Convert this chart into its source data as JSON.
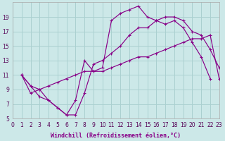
{
  "xlabel": "Windchill (Refroidissement éolien,°C)",
  "bg_color": "#cce8e8",
  "grid_color": "#aad0d0",
  "line_color": "#880088",
  "line1_x": [
    1,
    2,
    3,
    4,
    5,
    6,
    7,
    8,
    9,
    10,
    11,
    12,
    13,
    14,
    15,
    16,
    17,
    18,
    19,
    20,
    21,
    22,
    23
  ],
  "line1_y": [
    11.0,
    9.5,
    9.0,
    7.5,
    6.5,
    5.5,
    5.5,
    8.5,
    12.5,
    13.0,
    14.0,
    15.0,
    16.5,
    17.5,
    17.5,
    18.5,
    19.0,
    19.0,
    18.5,
    17.0,
    16.5,
    14.5,
    12.0
  ],
  "line2_x": [
    1,
    2,
    3,
    4,
    5,
    6,
    7,
    8,
    9,
    10,
    11,
    12,
    13,
    14,
    15,
    16,
    17,
    18,
    19,
    20,
    21,
    22,
    23
  ],
  "line2_y": [
    11.0,
    9.5,
    8.0,
    7.5,
    6.5,
    5.5,
    7.5,
    13.0,
    11.5,
    12.0,
    18.5,
    19.5,
    20.0,
    20.5,
    19.0,
    18.5,
    18.0,
    18.5,
    17.5,
    15.5,
    13.5,
    10.5
  ],
  "line2_xfull": [
    1,
    2,
    3,
    4,
    5,
    6,
    7,
    8,
    9,
    10,
    11,
    12,
    13,
    14,
    15,
    16,
    17,
    18,
    19,
    20,
    21,
    22
  ],
  "line3_x": [
    1,
    2,
    3,
    4,
    5,
    6,
    7,
    8,
    9,
    10,
    11,
    12,
    13,
    14,
    15,
    16,
    17,
    18,
    19,
    20,
    21,
    22,
    23
  ],
  "line3_y": [
    11.0,
    8.5,
    9.0,
    9.5,
    10.0,
    10.5,
    11.0,
    11.5,
    11.5,
    11.5,
    12.0,
    12.5,
    13.0,
    13.5,
    13.5,
    14.0,
    14.5,
    15.0,
    15.5,
    16.0,
    16.0,
    16.5,
    10.5
  ],
  "xlim": [
    0,
    23
  ],
  "ylim": [
    5,
    21
  ],
  "xticks": [
    0,
    1,
    2,
    3,
    4,
    5,
    6,
    7,
    8,
    9,
    10,
    11,
    12,
    13,
    14,
    15,
    16,
    17,
    18,
    19,
    20,
    21,
    22,
    23
  ],
  "yticks": [
    5,
    7,
    9,
    11,
    13,
    15,
    17,
    19
  ],
  "tick_fontsize": 5.5,
  "xlabel_fontsize": 6.0
}
